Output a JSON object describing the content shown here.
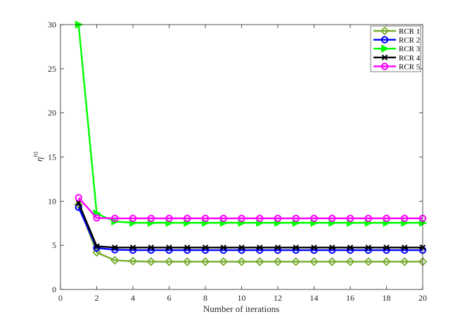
{
  "chart_data": {
    "type": "line",
    "xlabel": "Number of iterations",
    "ylabel": "η",
    "ylabel_superscript": "(t)",
    "xlim": [
      0,
      20
    ],
    "ylim": [
      0,
      30
    ],
    "x_ticks": [
      "0",
      "2",
      "4",
      "6",
      "8",
      "10",
      "12",
      "14",
      "16",
      "18",
      "20"
    ],
    "y_ticks": [
      "0",
      "5",
      "10",
      "15",
      "20",
      "25",
      "30"
    ],
    "grid": false,
    "legend_position": "top-right",
    "x": [
      1,
      2,
      3,
      4,
      5,
      6,
      7,
      8,
      9,
      10,
      11,
      12,
      13,
      14,
      15,
      16,
      17,
      18,
      19,
      20
    ],
    "series": [
      {
        "name": "RCR 1",
        "color": "#77ac30",
        "marker": "diamond",
        "values": [
          9.6,
          4.2,
          3.3,
          3.2,
          3.15,
          3.15,
          3.15,
          3.15,
          3.15,
          3.15,
          3.15,
          3.15,
          3.15,
          3.15,
          3.15,
          3.15,
          3.15,
          3.15,
          3.15,
          3.15
        ]
      },
      {
        "name": "RCR 2",
        "color": "#0000ff",
        "marker": "circle",
        "values": [
          9.3,
          4.7,
          4.5,
          4.45,
          4.45,
          4.45,
          4.45,
          4.45,
          4.45,
          4.45,
          4.45,
          4.45,
          4.45,
          4.45,
          4.45,
          4.45,
          4.45,
          4.45,
          4.45,
          4.45
        ]
      },
      {
        "name": "RCR 3",
        "color": "#00ff00",
        "marker": "triangle-right",
        "values": [
          30.0,
          8.6,
          7.7,
          7.55,
          7.55,
          7.55,
          7.55,
          7.55,
          7.55,
          7.55,
          7.55,
          7.55,
          7.55,
          7.55,
          7.55,
          7.55,
          7.55,
          7.55,
          7.55,
          7.55
        ]
      },
      {
        "name": "RCR 4",
        "color": "#000000",
        "marker": "x",
        "values": [
          9.8,
          4.9,
          4.75,
          4.75,
          4.75,
          4.75,
          4.75,
          4.75,
          4.75,
          4.75,
          4.75,
          4.75,
          4.75,
          4.75,
          4.75,
          4.75,
          4.75,
          4.75,
          4.75,
          4.75
        ]
      },
      {
        "name": "RCR 5",
        "color": "#ff00ff",
        "marker": "circle",
        "values": [
          10.4,
          8.1,
          8.05,
          8.05,
          8.05,
          8.05,
          8.05,
          8.05,
          8.05,
          8.05,
          8.05,
          8.05,
          8.05,
          8.05,
          8.05,
          8.05,
          8.05,
          8.05,
          8.05,
          8.05
        ]
      }
    ]
  }
}
